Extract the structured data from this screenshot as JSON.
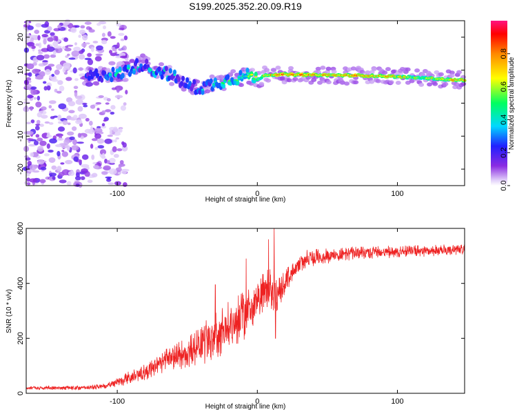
{
  "title": "S199.2025.352.20.09.R19",
  "chart_data": [
    {
      "type": "heatmap",
      "name": "spectrogram",
      "xlabel": "Height of straight line (km)",
      "ylabel": "Frequency (Hz)",
      "xlim": [
        -165,
        148
      ],
      "ylim": [
        -25,
        25
      ],
      "xticks": [
        -100,
        0,
        100
      ],
      "xtick_labels": [
        "-100",
        "0",
        "100"
      ],
      "yticks": [
        -20,
        -10,
        0,
        10,
        20
      ],
      "ytick_labels": [
        "-20",
        "-10",
        "0",
        "10",
        "20"
      ],
      "noise_region_x": [
        -165,
        -105
      ],
      "ridge": [
        {
          "x": -118,
          "f": 8.0,
          "amp": 0.25
        },
        {
          "x": -108,
          "f": 9.0,
          "amp": 0.3
        },
        {
          "x": -100,
          "f": 8.5,
          "amp": 0.35
        },
        {
          "x": -90,
          "f": 10.5,
          "amp": 0.35
        },
        {
          "x": -82,
          "f": 12.0,
          "amp": 0.3
        },
        {
          "x": -75,
          "f": 10.0,
          "amp": 0.35
        },
        {
          "x": -67,
          "f": 9.5,
          "amp": 0.35
        },
        {
          "x": -58,
          "f": 7.5,
          "amp": 0.3
        },
        {
          "x": -50,
          "f": 5.5,
          "amp": 0.3
        },
        {
          "x": -42,
          "f": 4.5,
          "amp": 0.3
        },
        {
          "x": -34,
          "f": 5.5,
          "amp": 0.35
        },
        {
          "x": -26,
          "f": 6.5,
          "amp": 0.4
        },
        {
          "x": -18,
          "f": 7.5,
          "amp": 0.45
        },
        {
          "x": -10,
          "f": 8.0,
          "amp": 0.5
        },
        {
          "x": -4,
          "f": 8.5,
          "amp": 0.55
        },
        {
          "x": 0,
          "f": 7.0,
          "amp": 0.5
        },
        {
          "x": 5,
          "f": 8.5,
          "amp": 0.65
        },
        {
          "x": 15,
          "f": 8.7,
          "amp": 0.75
        },
        {
          "x": 30,
          "f": 8.6,
          "amp": 0.8
        },
        {
          "x": 50,
          "f": 8.5,
          "amp": 0.7
        },
        {
          "x": 70,
          "f": 8.4,
          "amp": 0.75
        },
        {
          "x": 90,
          "f": 8.2,
          "amp": 0.7
        },
        {
          "x": 110,
          "f": 7.8,
          "amp": 0.6
        },
        {
          "x": 125,
          "f": 7.5,
          "amp": 0.6
        },
        {
          "x": 140,
          "f": 7.0,
          "amp": 0.7
        },
        {
          "x": 148,
          "f": 7.0,
          "amp": 0.7
        }
      ],
      "colorbar": {
        "label": "Normalized spectral amplitude",
        "ticks": [
          0.0,
          0.2,
          0.4,
          0.6,
          0.8
        ],
        "tick_labels": [
          "0.0",
          "0.2",
          "0.4",
          "0.6",
          "0.8"
        ],
        "range": [
          0,
          1
        ]
      }
    },
    {
      "type": "line",
      "name": "snr",
      "xlabel": "Height of straight line (km)",
      "ylabel": "SNR (10 * v/v)",
      "xlim": [
        -165,
        148
      ],
      "ylim": [
        0,
        600
      ],
      "xticks": [
        -100,
        0,
        100
      ],
      "xtick_labels": [
        "-100",
        "0",
        "100"
      ],
      "yticks": [
        0,
        200,
        400,
        600
      ],
      "ytick_labels": [
        "0",
        "200",
        "400",
        "600"
      ],
      "color": "#ee2222",
      "envelope": {
        "x": [
          -165,
          -140,
          -120,
          -105,
          -95,
          -85,
          -75,
          -65,
          -55,
          -45,
          -35,
          -25,
          -15,
          -8,
          -2,
          5,
          10,
          15,
          20,
          25,
          35,
          50,
          70,
          100,
          130,
          148
        ],
        "y": [
          20,
          20,
          20,
          30,
          50,
          70,
          90,
          120,
          140,
          160,
          190,
          230,
          260,
          290,
          330,
          360,
          380,
          360,
          410,
          440,
          490,
          500,
          510,
          515,
          520,
          525
        ]
      },
      "noise_amplitude": {
        "x": [
          -165,
          -110,
          -90,
          -60,
          -30,
          -10,
          10,
          25,
          60,
          148
        ],
        "y": [
          6,
          10,
          25,
          45,
          90,
          90,
          80,
          35,
          25,
          20
        ]
      },
      "spikes": [
        {
          "x": -30,
          "y": 395
        },
        {
          "x": -8,
          "y": 490
        },
        {
          "x": 8,
          "y": 560
        },
        {
          "x": 12,
          "y": 600
        },
        {
          "x": 13,
          "y": 200
        }
      ]
    }
  ]
}
